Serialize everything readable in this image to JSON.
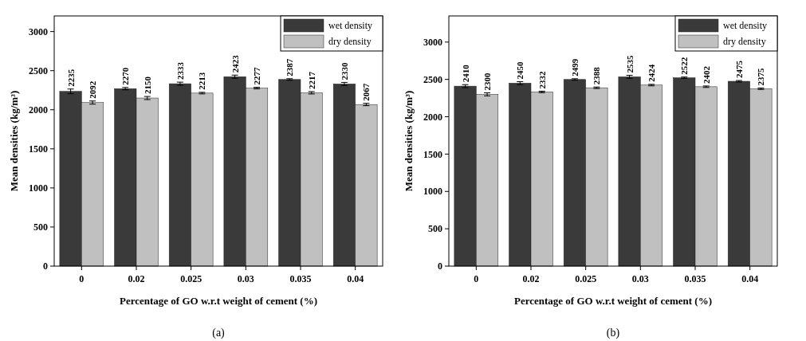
{
  "chart_data": [
    {
      "type": "bar",
      "ylabel": "Mean densities (kg/m³)",
      "xlabel": "Percentage of GO w.r.t weight of cement (%)",
      "categories": [
        "0",
        "0.02",
        "0.025",
        "0.03",
        "0.035",
        "0.04"
      ],
      "series": [
        {
          "name": "wet density",
          "color": "#3a3a3a",
          "values": [
            2235,
            2270,
            2333,
            2423,
            2387,
            2330
          ],
          "errors": [
            30,
            15,
            20,
            20,
            10,
            20
          ]
        },
        {
          "name": "dry density",
          "color": "#c0c0c0",
          "values": [
            2092,
            2150,
            2213,
            2277,
            2217,
            2067
          ],
          "errors": [
            20,
            20,
            10,
            10,
            15,
            15
          ]
        }
      ],
      "ylim": [
        0,
        3200
      ],
      "yticks": [
        0,
        500,
        1000,
        1500,
        2000,
        2500,
        3000
      ],
      "data_labels": true,
      "legend": "top right",
      "grid": false,
      "annotations": [
        "(a)"
      ]
    },
    {
      "type": "bar",
      "ylabel": "Mean densities (kg/m³)",
      "xlabel": "Percentage of GO w.r.t weight of cement (%)",
      "categories": [
        "0",
        "0.02",
        "0.025",
        "0.03",
        "0.035",
        "0.04"
      ],
      "series": [
        {
          "name": "wet density",
          "color": "#3a3a3a",
          "values": [
            2410,
            2450,
            2499,
            2535,
            2522,
            2475
          ],
          "errors": [
            20,
            20,
            10,
            20,
            10,
            10
          ]
        },
        {
          "name": "dry density",
          "color": "#c0c0c0",
          "values": [
            2300,
            2332,
            2388,
            2424,
            2402,
            2375
          ],
          "errors": [
            20,
            10,
            10,
            10,
            10,
            10
          ]
        }
      ],
      "ylim": [
        0,
        3350
      ],
      "yticks": [
        0,
        500,
        1000,
        1500,
        2000,
        2500,
        3000
      ],
      "data_labels": true,
      "legend": "top right",
      "grid": false,
      "annotations": [
        "(b)"
      ]
    }
  ]
}
